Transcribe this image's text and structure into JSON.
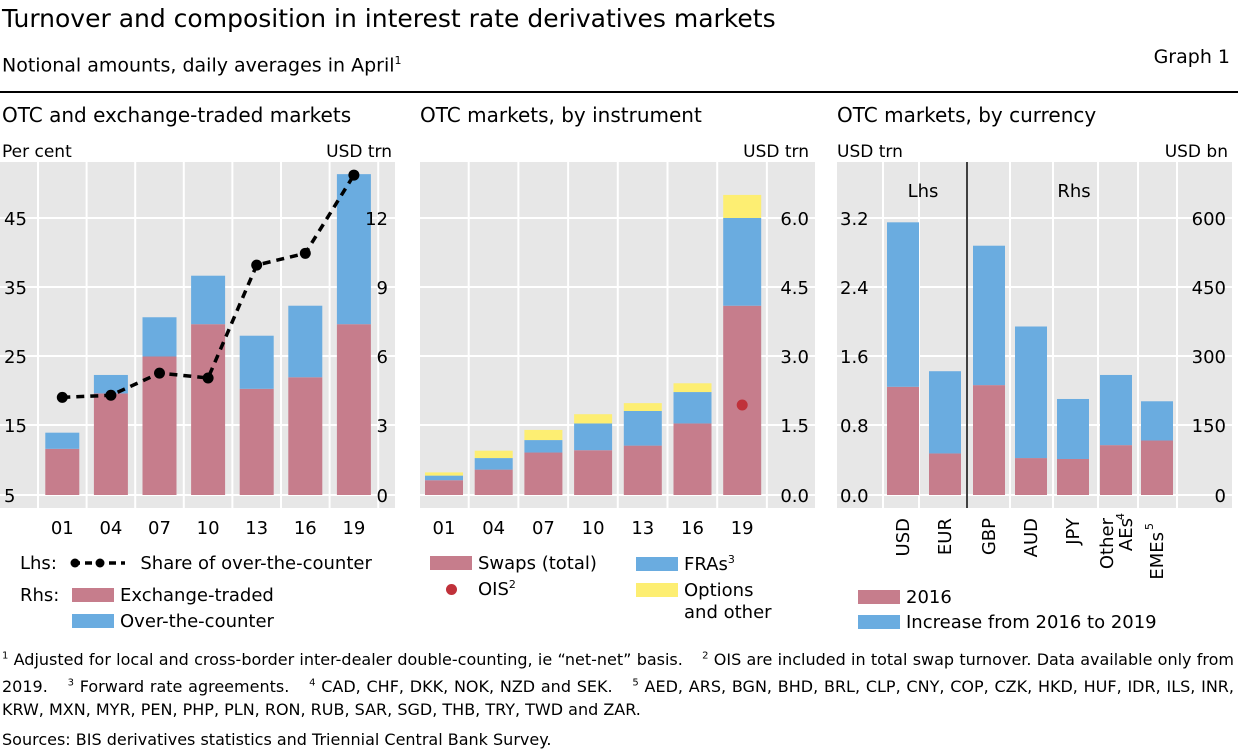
{
  "header": {
    "title": "Turnover and composition in interest rate derivatives markets",
    "subtitle": "Notional amounts, daily averages in April",
    "subtitle_note": "1",
    "graph_label": "Graph 1"
  },
  "colors": {
    "pink": "#c67d8c",
    "blue": "#6aace0",
    "yellow": "#fdee72",
    "red": "#c0313a",
    "grid": "#ffffff",
    "bg": "#e7e7e7"
  },
  "chart_data": [
    {
      "type": "bar",
      "title": "OTC and exchange-traded markets",
      "left_unit": "Per cent",
      "right_unit": "USD trn",
      "categories": [
        "01",
        "04",
        "07",
        "10",
        "13",
        "16",
        "19"
      ],
      "left_ticks": [
        "5",
        "15",
        "25",
        "35",
        "45"
      ],
      "right_ticks": [
        "0",
        "3",
        "6",
        "9",
        "12"
      ],
      "ylim_left": [
        5,
        55
      ],
      "ylim_right": [
        0,
        15
      ],
      "series": [
        {
          "name": "Exchange-traded",
          "axis": "right",
          "values": [
            2.0,
            4.4,
            6.0,
            7.4,
            4.6,
            5.1,
            7.4
          ]
        },
        {
          "name": "Over-the-counter",
          "axis": "right",
          "values": [
            0.7,
            0.8,
            1.7,
            2.1,
            2.3,
            3.1,
            6.5
          ]
        },
        {
          "name": "Share of over-the-counter",
          "axis": "left",
          "type": "line",
          "values": [
            19.1,
            19.4,
            22.6,
            21.9,
            38.2,
            39.9,
            51.2
          ]
        }
      ],
      "legend": {
        "lhs_label": "Lhs:",
        "rhs_label": "Rhs:",
        "line": "Share of over-the-counter",
        "exchange": "Exchange-traded",
        "otc": "Over-the-counter"
      }
    },
    {
      "type": "bar",
      "title": "OTC markets, by instrument",
      "right_unit": "USD trn",
      "categories": [
        "01",
        "04",
        "07",
        "10",
        "13",
        "16",
        "19"
      ],
      "right_ticks": [
        "0.0",
        "1.5",
        "3.0",
        "4.5",
        "6.0"
      ],
      "ylim": [
        0,
        7.5
      ],
      "series": [
        {
          "name": "Swaps (total)",
          "values": [
            0.32,
            0.55,
            0.92,
            0.97,
            1.07,
            1.55,
            4.1
          ]
        },
        {
          "name": "FRAs",
          "values": [
            0.1,
            0.25,
            0.27,
            0.58,
            0.75,
            0.68,
            1.9
          ]
        },
        {
          "name": "Options and other",
          "values": [
            0.07,
            0.16,
            0.22,
            0.2,
            0.17,
            0.19,
            0.5
          ]
        },
        {
          "name": "OIS",
          "type": "point",
          "values": [
            null,
            null,
            null,
            null,
            null,
            null,
            1.95
          ]
        }
      ],
      "legend": {
        "swaps": "Swaps (total)",
        "ois": "OIS",
        "ois_note": "2",
        "fras": "FRAs",
        "fras_note": "3",
        "options_1": "Options",
        "options_2": "and other"
      }
    },
    {
      "type": "bar",
      "title": "OTC markets, by currency",
      "left_unit": "USD trn",
      "right_unit": "USD bn",
      "divider_labels": {
        "lhs": "Lhs",
        "rhs": "Rhs"
      },
      "left_ticks": [
        "0.0",
        "0.8",
        "1.6",
        "2.4",
        "3.2"
      ],
      "right_ticks": [
        "0",
        "150",
        "300",
        "450",
        "600"
      ],
      "ylim_left": [
        0,
        4.0
      ],
      "ylim_right": [
        0,
        750
      ],
      "categories": [
        "USD",
        "EUR",
        "GBP",
        "AUD",
        "JPY",
        "Other AEs",
        "EMEs"
      ],
      "category_labels": [
        {
          "text": "USD"
        },
        {
          "text": "EUR"
        },
        {
          "text": "GBP"
        },
        {
          "text": "AUD"
        },
        {
          "text": "JPY"
        },
        {
          "line1": "Other",
          "line2": "AEs",
          "note": "4"
        },
        {
          "text": "EMEs",
          "note": "5"
        }
      ],
      "series": [
        {
          "name": "2016",
          "values": [
            1.25,
            0.48,
            238,
            80,
            78,
            108,
            118
          ]
        },
        {
          "name": "Increase from 2016 to 2019",
          "values": [
            1.9,
            0.95,
            302,
            285,
            130,
            152,
            85
          ]
        }
      ],
      "value_axes": [
        "left",
        "left",
        "right",
        "right",
        "right",
        "right",
        "right"
      ],
      "legend": {
        "y2016": "2016",
        "increase": "Increase from 2016 to 2019"
      }
    }
  ],
  "footnotes": [
    {
      "n": "1",
      "text": "Adjusted for local and cross-border inter-dealer double-counting, ie “net-net” basis."
    },
    {
      "n": "2",
      "text": "OIS are included in total swap turnover. Data available only from 2019."
    },
    {
      "n": "3",
      "text": "Forward rate agreements."
    },
    {
      "n": "4",
      "text": "CAD, CHF, DKK, NOK, NZD and SEK."
    },
    {
      "n": "5",
      "text": "AED, ARS, BGN, BHD, BRL, CLP, CNY, COP, CZK, HKD, HUF, IDR, ILS, INR, KRW, MXN, MYR, PEN, PHP, PLN, RON, RUB, SAR, SGD, THB, TRY, TWD and ZAR."
    }
  ],
  "sources": "Sources: BIS derivatives statistics and Triennial Central Bank Survey."
}
